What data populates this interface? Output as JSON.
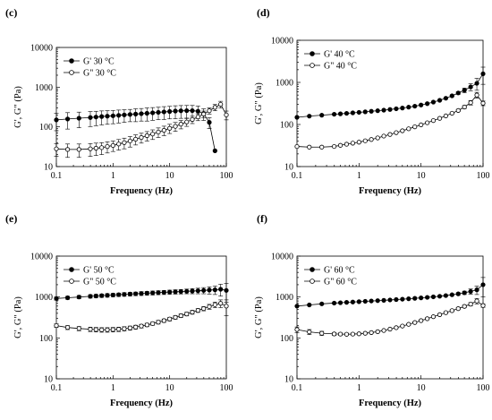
{
  "chart_data": [
    {
      "panel_label": "(c)",
      "type": "scatter",
      "xscale": "log",
      "yscale": "log",
      "xlim": [
        0.1,
        100
      ],
      "ylim": [
        10,
        10000
      ],
      "x_ticks": [
        "0.1",
        "1",
        "10",
        "100"
      ],
      "y_ticks": [
        "10",
        "100",
        "1000",
        "10000"
      ],
      "xlabel": "Frequency (Hz)",
      "ylabel": "G', G\" (Pa)",
      "legend_position": "top-left",
      "series": [
        {
          "name": "G' 30 °C",
          "marker": "filled-circle",
          "x": [
            0.1,
            0.158,
            0.251,
            0.398,
            0.501,
            0.631,
            0.794,
            1,
            1.26,
            1.58,
            2,
            2.51,
            3.16,
            3.98,
            5.01,
            6.31,
            7.94,
            10,
            12.6,
            15.8,
            20,
            25.1,
            31.6,
            39.8,
            50.1,
            63.1
          ],
          "y": [
            150,
            158,
            165,
            172,
            177,
            182,
            186,
            190,
            195,
            200,
            205,
            210,
            215,
            220,
            226,
            232,
            238,
            244,
            250,
            254,
            256,
            256,
            248,
            215,
            130,
            25
          ],
          "err": [
            70,
            70,
            70,
            70,
            70,
            70,
            70,
            70,
            70,
            70,
            70,
            75,
            75,
            80,
            80,
            80,
            85,
            85,
            90,
            90,
            90,
            90,
            85,
            70,
            40,
            0
          ]
        },
        {
          "name": "G\" 30 °C",
          "marker": "open-circle",
          "x": [
            0.1,
            0.158,
            0.251,
            0.398,
            0.501,
            0.631,
            0.794,
            1,
            1.26,
            1.58,
            2,
            2.51,
            3.16,
            3.98,
            5.01,
            6.31,
            7.94,
            10,
            12.6,
            15.8,
            20,
            25.1,
            31.6,
            39.8,
            50.1,
            63.1,
            79.4,
            100
          ],
          "y": [
            28,
            27,
            27,
            28,
            29,
            30,
            32,
            34,
            37,
            40,
            44,
            49,
            54,
            60,
            66,
            74,
            82,
            92,
            103,
            117,
            133,
            153,
            178,
            210,
            255,
            310,
            370,
            200
          ],
          "err": [
            10,
            10,
            10,
            10,
            10,
            10,
            10,
            10,
            11,
            12,
            13,
            14,
            15,
            16,
            18,
            20,
            22,
            24,
            26,
            28,
            30,
            32,
            35,
            40,
            45,
            55,
            70,
            50
          ]
        }
      ]
    },
    {
      "panel_label": "(d)",
      "type": "scatter",
      "xscale": "log",
      "yscale": "log",
      "xlim": [
        0.1,
        100
      ],
      "ylim": [
        10,
        10000
      ],
      "x_ticks": [
        "0.1",
        "1",
        "10",
        "100"
      ],
      "y_ticks": [
        "10",
        "100",
        "1000",
        "10000"
      ],
      "xlabel": "Frequency (Hz)",
      "ylabel": "G', G\" (Pa)",
      "legend_position": "top-left",
      "series": [
        {
          "name": "G' 40 °C",
          "marker": "filled-circle",
          "x": [
            0.1,
            0.158,
            0.251,
            0.398,
            0.501,
            0.631,
            0.794,
            1,
            1.26,
            1.58,
            2,
            2.51,
            3.16,
            3.98,
            5.01,
            6.31,
            7.94,
            10,
            12.6,
            15.8,
            20,
            25.1,
            31.6,
            39.8,
            50.1,
            63.1,
            79.4,
            100
          ],
          "y": [
            148,
            158,
            166,
            175,
            179,
            184,
            189,
            194,
            200,
            206,
            212,
            219,
            227,
            236,
            246,
            258,
            272,
            290,
            312,
            340,
            375,
            420,
            480,
            560,
            650,
            780,
            950,
            1600
          ],
          "err": [
            0,
            0,
            0,
            0,
            0,
            0,
            0,
            0,
            0,
            0,
            0,
            0,
            0,
            0,
            0,
            0,
            0,
            0,
            0,
            0,
            0,
            10,
            20,
            40,
            80,
            150,
            300,
            700
          ]
        },
        {
          "name": "G\" 40 °C",
          "marker": "open-circle",
          "x": [
            0.1,
            0.158,
            0.251,
            0.398,
            0.501,
            0.631,
            0.794,
            1,
            1.26,
            1.58,
            2,
            2.51,
            3.16,
            3.98,
            5.01,
            6.31,
            7.94,
            10,
            12.6,
            15.8,
            20,
            25.1,
            31.6,
            39.8,
            50.1,
            63.1,
            79.4,
            100
          ],
          "y": [
            30,
            29,
            29,
            30,
            32,
            34,
            36,
            38,
            41,
            44,
            48,
            53,
            58,
            64,
            71,
            79,
            88,
            98,
            110,
            124,
            140,
            160,
            185,
            215,
            260,
            330,
            500,
            320
          ],
          "err": [
            0,
            0,
            0,
            0,
            0,
            0,
            0,
            0,
            0,
            0,
            0,
            0,
            0,
            0,
            0,
            0,
            0,
            0,
            0,
            0,
            0,
            0,
            5,
            10,
            20,
            40,
            80,
            40
          ]
        }
      ]
    },
    {
      "panel_label": "(e)",
      "type": "scatter",
      "xscale": "log",
      "yscale": "log",
      "xlim": [
        0.1,
        100
      ],
      "ylim": [
        10,
        10000
      ],
      "x_ticks": [
        "0.1",
        "1",
        "10",
        "100"
      ],
      "y_ticks": [
        "10",
        "100",
        "1000",
        "10000"
      ],
      "xlabel": "Frequency (Hz)",
      "ylabel": "G', G\" (Pa)",
      "legend_position": "top-left",
      "series": [
        {
          "name": "G' 50 °C",
          "marker": "filled-circle",
          "x": [
            0.1,
            0.158,
            0.251,
            0.398,
            0.501,
            0.631,
            0.794,
            1,
            1.26,
            1.58,
            2,
            2.51,
            3.16,
            3.98,
            5.01,
            6.31,
            7.94,
            10,
            12.6,
            15.8,
            20,
            25.1,
            31.6,
            39.8,
            50.1,
            63.1,
            79.4,
            100
          ],
          "y": [
            920,
            960,
            1000,
            1040,
            1060,
            1080,
            1100,
            1120,
            1140,
            1160,
            1180,
            1200,
            1220,
            1240,
            1260,
            1280,
            1300,
            1320,
            1340,
            1360,
            1380,
            1400,
            1420,
            1450,
            1480,
            1500,
            1550,
            1450
          ],
          "err": [
            80,
            80,
            90,
            100,
            100,
            100,
            110,
            110,
            110,
            120,
            120,
            120,
            130,
            130,
            140,
            140,
            150,
            150,
            160,
            170,
            180,
            200,
            220,
            250,
            300,
            350,
            500,
            700
          ]
        },
        {
          "name": "G\" 50 °C",
          "marker": "open-circle",
          "x": [
            0.1,
            0.158,
            0.251,
            0.398,
            0.501,
            0.631,
            0.794,
            1,
            1.26,
            1.58,
            2,
            2.51,
            3.16,
            3.98,
            5.01,
            6.31,
            7.94,
            10,
            12.6,
            15.8,
            20,
            25.1,
            31.6,
            39.8,
            50.1,
            63.1,
            79.4,
            100
          ],
          "y": [
            200,
            180,
            170,
            163,
            160,
            158,
            158,
            160,
            163,
            168,
            175,
            184,
            195,
            208,
            224,
            243,
            265,
            290,
            318,
            350,
            385,
            425,
            470,
            520,
            580,
            650,
            700,
            600
          ],
          "err": [
            20,
            20,
            20,
            20,
            20,
            20,
            20,
            20,
            20,
            20,
            20,
            20,
            20,
            20,
            20,
            25,
            25,
            30,
            30,
            35,
            40,
            45,
            50,
            60,
            80,
            100,
            150,
            250
          ]
        }
      ]
    },
    {
      "panel_label": "(f)",
      "type": "scatter",
      "xscale": "log",
      "yscale": "log",
      "xlim": [
        0.1,
        100
      ],
      "ylim": [
        10,
        10000
      ],
      "x_ticks": [
        "0.1",
        "1",
        "10",
        "100"
      ],
      "y_ticks": [
        "10",
        "100",
        "1000",
        "10000"
      ],
      "xlabel": "Frequency (Hz)",
      "ylabel": "G', G\" (Pa)",
      "legend_position": "top-left",
      "series": [
        {
          "name": "G' 60 °C",
          "marker": "filled-circle",
          "x": [
            0.1,
            0.158,
            0.251,
            0.398,
            0.501,
            0.631,
            0.794,
            1,
            1.26,
            1.58,
            2,
            2.51,
            3.16,
            3.98,
            5.01,
            6.31,
            7.94,
            10,
            12.6,
            15.8,
            20,
            25.1,
            31.6,
            39.8,
            50.1,
            63.1,
            79.4,
            100
          ],
          "y": [
            600,
            640,
            680,
            710,
            725,
            740,
            755,
            770,
            785,
            800,
            815,
            830,
            848,
            866,
            885,
            905,
            928,
            952,
            980,
            1010,
            1045,
            1085,
            1135,
            1195,
            1270,
            1370,
            1500,
            2000
          ],
          "err": [
            0,
            0,
            0,
            0,
            0,
            0,
            0,
            0,
            0,
            0,
            0,
            0,
            0,
            0,
            0,
            0,
            0,
            0,
            0,
            0,
            0,
            30,
            50,
            80,
            120,
            200,
            350,
            1000
          ]
        },
        {
          "name": "G\" 60 °C",
          "marker": "open-circle",
          "x": [
            0.1,
            0.158,
            0.251,
            0.398,
            0.501,
            0.631,
            0.794,
            1,
            1.26,
            1.58,
            2,
            2.51,
            3.16,
            3.98,
            5.01,
            6.31,
            7.94,
            10,
            12.6,
            15.8,
            20,
            25.1,
            31.6,
            39.8,
            50.1,
            63.1,
            79.4,
            100
          ],
          "y": [
            160,
            140,
            130,
            125,
            124,
            123,
            124,
            126,
            130,
            135,
            142,
            152,
            164,
            178,
            195,
            215,
            238,
            265,
            295,
            330,
            370,
            415,
            465,
            520,
            590,
            670,
            800,
            620
          ],
          "err": [
            25,
            20,
            15,
            10,
            8,
            6,
            6,
            6,
            6,
            6,
            6,
            6,
            6,
            8,
            8,
            10,
            10,
            12,
            14,
            16,
            18,
            20,
            25,
            30,
            40,
            60,
            120,
            60
          ]
        }
      ]
    }
  ]
}
